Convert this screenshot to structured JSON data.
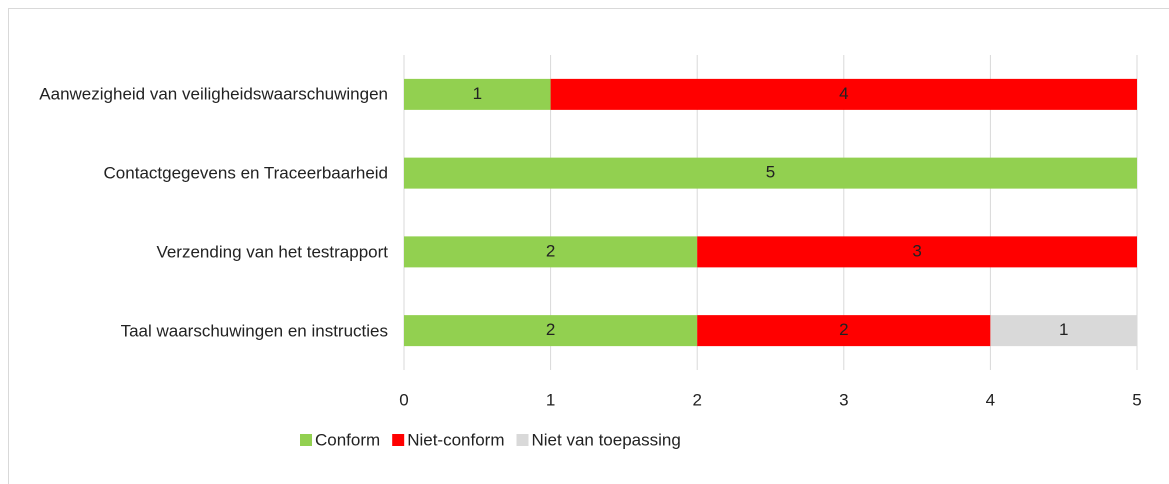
{
  "chart_data": {
    "type": "stacked_bar_horizontal",
    "categories": [
      "Aanwezigheid van veiligheidswaarschuwingen",
      "Contactgegevens en Traceerbaarheid",
      "Verzending van het testrapport",
      "Taal waarschuwingen en instructies"
    ],
    "series": [
      {
        "name": "Conform",
        "color": "#92d050",
        "values": [
          1,
          5,
          2,
          2
        ]
      },
      {
        "name": "Niet-conform",
        "color": "#ff0000",
        "values": [
          4,
          0,
          3,
          2
        ]
      },
      {
        "name": "Niet van toepassing",
        "color": "#d9d9d9",
        "values": [
          0,
          0,
          0,
          1
        ]
      }
    ],
    "xlim": [
      0,
      5
    ],
    "xticks": [
      0,
      1,
      2,
      3,
      4,
      5
    ],
    "grid": true,
    "legend": "bottom"
  }
}
